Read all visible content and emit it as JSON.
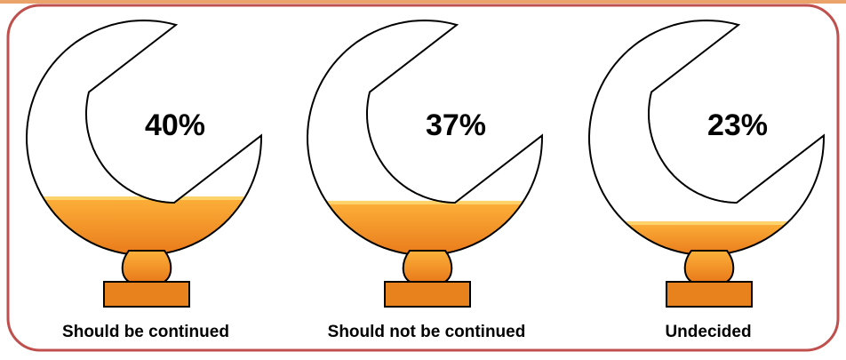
{
  "chart_data": {
    "type": "crescent-fill",
    "categories": [
      "Should be continued",
      "Should not be continued",
      "Undecided"
    ],
    "values": [
      40,
      37,
      23
    ],
    "value_labels": [
      "40%",
      "37%",
      "23%"
    ],
    "color": "#f39a1f",
    "ylim": [
      0,
      100
    ]
  }
}
